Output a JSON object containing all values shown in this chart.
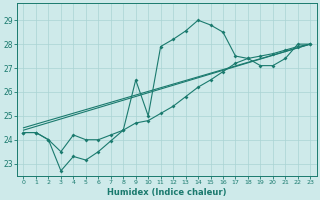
{
  "xlabel": "Humidex (Indice chaleur)",
  "bg_color": "#ceeaea",
  "line_color": "#1a7a6e",
  "grid_color": "#aad4d4",
  "xlim": [
    -0.5,
    23.5
  ],
  "ylim": [
    22.5,
    29.7
  ],
  "yticks": [
    23,
    24,
    25,
    26,
    27,
    28,
    29
  ],
  "xticks": [
    0,
    1,
    2,
    3,
    4,
    5,
    6,
    7,
    8,
    9,
    10,
    11,
    12,
    13,
    14,
    15,
    16,
    17,
    18,
    19,
    20,
    21,
    22,
    23
  ],
  "line1_x": [
    0,
    1,
    2,
    3,
    4,
    5,
    6,
    7,
    8,
    9,
    10,
    11,
    12,
    13,
    14,
    15,
    16,
    17,
    18,
    19,
    20,
    21,
    22,
    23
  ],
  "line1_y": [
    24.3,
    24.3,
    24.0,
    23.5,
    24.2,
    24.0,
    24.0,
    24.2,
    24.4,
    26.5,
    25.0,
    27.9,
    28.2,
    28.55,
    29.0,
    28.8,
    28.5,
    27.5,
    27.4,
    27.1,
    27.1,
    27.4,
    28.0,
    28.0
  ],
  "line2_x": [
    0,
    1,
    2,
    3,
    4,
    5,
    6,
    7,
    8,
    9,
    10,
    11,
    12,
    13,
    14,
    15,
    16,
    17,
    18,
    19,
    20,
    21,
    22,
    23
  ],
  "line2_y": [
    24.3,
    24.3,
    24.0,
    22.7,
    23.3,
    23.15,
    23.5,
    23.95,
    24.4,
    24.7,
    24.8,
    25.1,
    25.4,
    25.8,
    26.2,
    26.5,
    26.85,
    27.2,
    27.4,
    27.5,
    27.6,
    27.75,
    27.9,
    28.0
  ],
  "line3_x": [
    0,
    23
  ],
  "line3_y": [
    24.4,
    28.0
  ],
  "line4_x": [
    0,
    23
  ],
  "line4_y": [
    24.5,
    28.0
  ]
}
